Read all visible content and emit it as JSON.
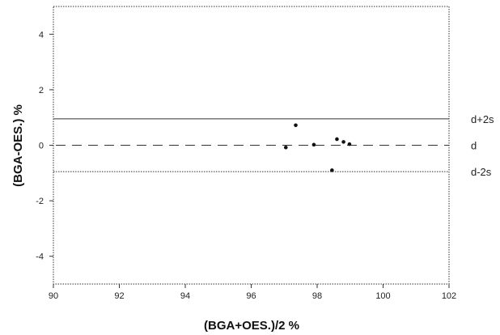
{
  "chart_data": {
    "type": "scatter",
    "xlabel": "(BGA+OES.)/2 %",
    "ylabel": "(BGA-OES.) %",
    "xlim": [
      90,
      102
    ],
    "ylim": [
      -5,
      5
    ],
    "x_ticks": [
      90,
      92,
      94,
      96,
      98,
      100,
      102
    ],
    "y_ticks": [
      -4,
      -2,
      0,
      2,
      4
    ],
    "grid": false,
    "points": [
      {
        "x": 97.05,
        "y": -0.08
      },
      {
        "x": 97.35,
        "y": 0.72
      },
      {
        "x": 97.9,
        "y": 0.02
      },
      {
        "x": 98.45,
        "y": -0.9
      },
      {
        "x": 98.6,
        "y": 0.22
      },
      {
        "x": 98.8,
        "y": 0.12
      },
      {
        "x": 98.98,
        "y": 0.04
      }
    ],
    "reference_lines": [
      {
        "label": "d+2s",
        "y": 0.95,
        "style": "solid"
      },
      {
        "label": "d",
        "y": 0.0,
        "style": "dashed"
      },
      {
        "label": "d-2s",
        "y": -0.95,
        "style": "dotted"
      }
    ]
  }
}
